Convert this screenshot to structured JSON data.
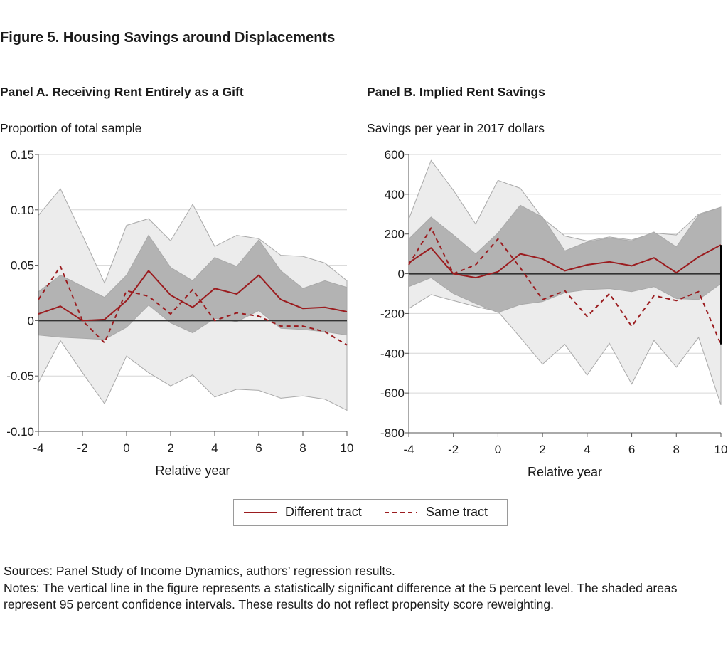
{
  "figure_title": "Figure 5. Housing Savings around Displacements",
  "legend": {
    "different_label": "Different tract",
    "same_label": "Same tract"
  },
  "colors": {
    "series": "#9b1c1f",
    "ci_outer": "#ececec",
    "ci_inner": "#b3b3b3",
    "ci_edge": "#a9a9a9",
    "zero_line": "#333333",
    "grid": "#d6d6d6"
  },
  "sources": "Sources: Panel Study of Income Dynamics, authors’ regression results.",
  "notes": "Notes: The vertical line in the figure represents a statistically significant difference at the 5 percent level. The shaded areas represent 95 percent confidence intervals. These results do not reflect propensity score reweighting.",
  "chart_data": [
    {
      "type": "line",
      "title": "Panel A. Receiving Rent Entirely as a Gift",
      "ylabel": "Proportion of total sample",
      "xlabel": "Relative year",
      "xlim": [
        -4,
        10
      ],
      "ylim": [
        -0.1,
        0.15
      ],
      "x_ticks": [
        "-4",
        "-2",
        "0",
        "2",
        "4",
        "6",
        "8",
        "10"
      ],
      "y_ticks": [
        "0.15",
        "0.10",
        "0.05",
        "0",
        "-0.05",
        "-0.10"
      ],
      "x": [
        -4,
        -3,
        -2,
        -1,
        0,
        1,
        2,
        3,
        4,
        5,
        6,
        7,
        8,
        9,
        10
      ],
      "series": [
        {
          "name": "Different tract",
          "style": "solid",
          "values": [
            0.006,
            0.013,
            0.0,
            0.001,
            0.018,
            0.045,
            0.023,
            0.012,
            0.029,
            0.024,
            0.041,
            0.019,
            0.011,
            0.012,
            0.008
          ]
        },
        {
          "name": "Same tract",
          "style": "dashed",
          "values": [
            0.019,
            0.049,
            0.0,
            -0.02,
            0.027,
            0.022,
            0.006,
            0.028,
            0.0,
            0.007,
            0.004,
            -0.005,
            -0.005,
            -0.01,
            -0.022
          ]
        }
      ],
      "bands": [
        {
          "series": "Same tract",
          "level": "95% CI",
          "upper": [
            0.095,
            0.119,
            0.077,
            0.034,
            0.086,
            0.092,
            0.072,
            0.105,
            0.067,
            0.077,
            0.074,
            0.059,
            0.058,
            0.052,
            0.036
          ],
          "lower": [
            -0.056,
            -0.018,
            -0.047,
            -0.075,
            -0.032,
            -0.047,
            -0.059,
            -0.049,
            -0.069,
            -0.062,
            -0.063,
            -0.07,
            -0.068,
            -0.071,
            -0.081
          ]
        },
        {
          "series": "Different tract",
          "level": "95% CI",
          "upper": [
            0.026,
            0.041,
            0.031,
            0.021,
            0.041,
            0.077,
            0.048,
            0.036,
            0.057,
            0.049,
            0.073,
            0.045,
            0.029,
            0.036,
            0.03
          ],
          "lower": [
            -0.013,
            -0.015,
            -0.016,
            -0.017,
            -0.006,
            0.014,
            -0.002,
            -0.011,
            0.002,
            -0.001,
            0.009,
            -0.007,
            -0.008,
            -0.01,
            -0.013
          ]
        }
      ],
      "significant_x": []
    },
    {
      "type": "line",
      "title": "Panel B. Implied Rent Savings",
      "ylabel": "Savings per year in 2017 dollars",
      "xlabel": "Relative year",
      "xlim": [
        -4,
        10
      ],
      "ylim": [
        -800,
        600
      ],
      "x_ticks": [
        "-4",
        "-2",
        "0",
        "2",
        "4",
        "6",
        "8",
        "10"
      ],
      "y_ticks": [
        "600",
        "400",
        "200",
        "0",
        "-200",
        "-400",
        "-600",
        "-800"
      ],
      "x": [
        -4,
        -3,
        -2,
        -1,
        0,
        1,
        2,
        3,
        4,
        5,
        6,
        7,
        8,
        9,
        10
      ],
      "series": [
        {
          "name": "Different tract",
          "style": "solid",
          "values": [
            55,
            130,
            0,
            -20,
            10,
            100,
            75,
            15,
            45,
            60,
            40,
            80,
            5,
            85,
            145
          ]
        },
        {
          "name": "Same tract",
          "style": "dashed",
          "values": [
            45,
            230,
            0,
            45,
            175,
            30,
            -130,
            -85,
            -215,
            -100,
            -265,
            -110,
            -135,
            -90,
            -355
          ]
        }
      ],
      "bands": [
        {
          "series": "Same tract",
          "level": "95% CI",
          "upper": [
            275,
            570,
            420,
            250,
            470,
            430,
            280,
            190,
            165,
            185,
            170,
            205,
            195,
            300,
            335
          ],
          "lower": [
            -175,
            -105,
            -135,
            -165,
            -190,
            -320,
            -455,
            -355,
            -510,
            -350,
            -555,
            -335,
            -470,
            -320,
            -660
          ]
        },
        {
          "series": "Different tract",
          "level": "95% CI",
          "upper": [
            175,
            285,
            195,
            100,
            205,
            345,
            285,
            115,
            160,
            180,
            165,
            210,
            135,
            295,
            335
          ],
          "lower": [
            -65,
            -20,
            -100,
            -150,
            -195,
            -155,
            -140,
            -95,
            -80,
            -75,
            -90,
            -65,
            -125,
            -130,
            -50
          ]
        }
      ],
      "significant_x": [
        10
      ]
    }
  ]
}
